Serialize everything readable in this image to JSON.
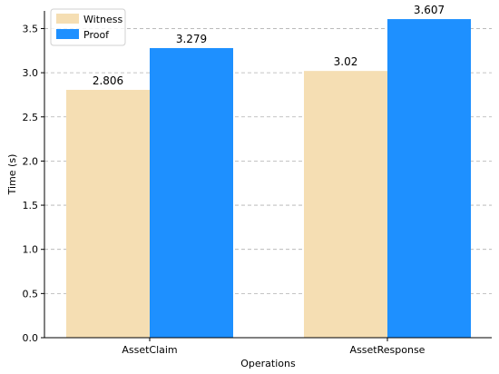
{
  "chart_data": {
    "type": "bar",
    "categories": [
      "AssetClaim",
      "AssetResponse"
    ],
    "series": [
      {
        "name": "Witness",
        "values": [
          2.806,
          3.02
        ],
        "labels": [
          "2.806",
          "3.02"
        ],
        "color": "#f5deb3"
      },
      {
        "name": "Proof",
        "values": [
          3.279,
          3.607
        ],
        "labels": [
          "3.279",
          "3.607"
        ],
        "color": "#1e90ff"
      }
    ],
    "xlabel": "Operations",
    "ylabel": "Time (s)",
    "ylim": [
      0,
      3.7
    ],
    "yticks": [
      0.0,
      0.5,
      1.0,
      1.5,
      2.0,
      2.5,
      3.0,
      3.5
    ],
    "ytick_labels": [
      "0.0",
      "0.5",
      "1.0",
      "1.5",
      "2.0",
      "2.5",
      "3.0",
      "3.5"
    ],
    "grid": "y-dashed",
    "legend_position": "top-left",
    "gridline_color": "#b0b0b0",
    "axis_color": "#000000"
  }
}
